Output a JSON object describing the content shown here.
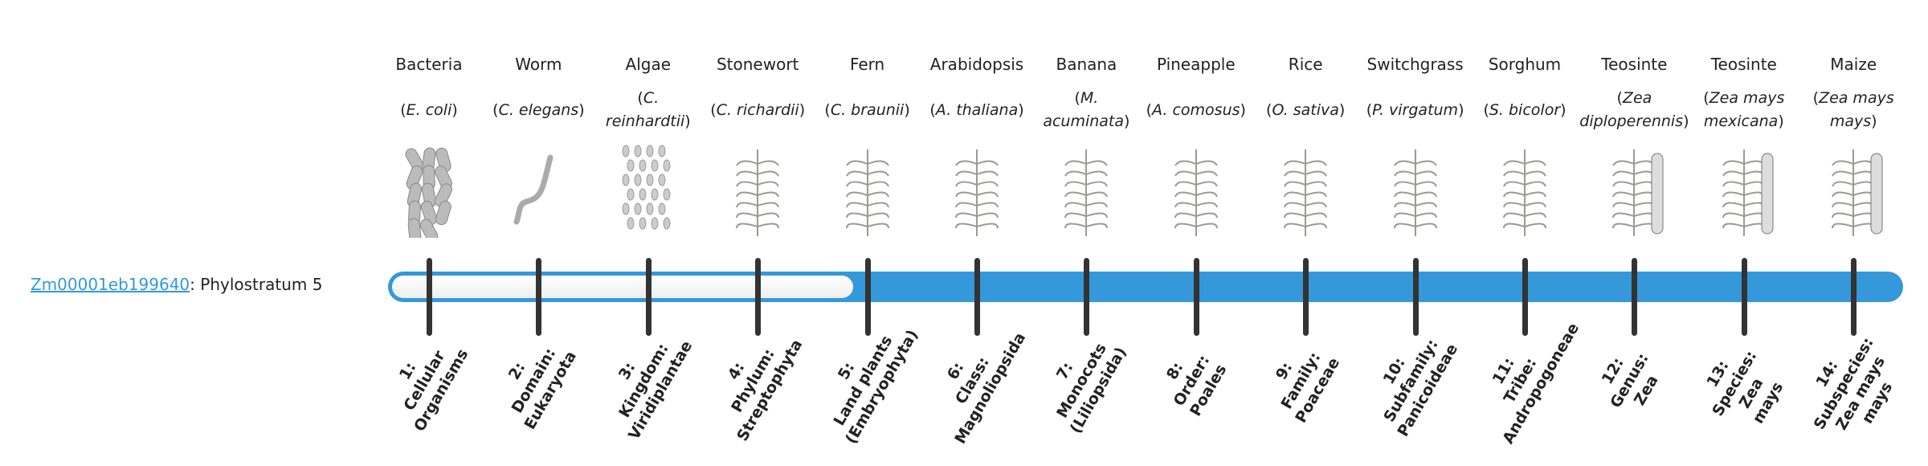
{
  "gene": {
    "id": "Zm00001eb199640",
    "suffix": ": Phylostratum 5",
    "phylostratum": 5
  },
  "colors": {
    "bar": "#3498db",
    "tick": "#333333",
    "link": "#3498db"
  },
  "organisms": [
    {
      "common": "Bacteria",
      "scientific": "E. coli",
      "icon": "bacteria-image"
    },
    {
      "common": "Worm",
      "scientific": "C. elegans",
      "icon": "worm-image"
    },
    {
      "common": "Algae",
      "scientific": "C. reinhardtii",
      "icon": "algae-image"
    },
    {
      "common": "Stonewort",
      "scientific": "C. richardii",
      "icon": "stonewort-image"
    },
    {
      "common": "Fern",
      "scientific": "C. braunii",
      "icon": "fern-image"
    },
    {
      "common": "Arabidopsis",
      "scientific": "A. thaliana",
      "icon": "arabidopsis-image"
    },
    {
      "common": "Banana",
      "scientific": "M. acuminata",
      "icon": "banana-image"
    },
    {
      "common": "Pineapple",
      "scientific": "A. comosus",
      "icon": "pineapple-image"
    },
    {
      "common": "Rice",
      "scientific": "O. sativa",
      "icon": "rice-image"
    },
    {
      "common": "Switchgrass",
      "scientific": "P. virgatum",
      "icon": "switchgrass-image"
    },
    {
      "common": "Sorghum",
      "scientific": "S. bicolor",
      "icon": "sorghum-image"
    },
    {
      "common": "Teosinte",
      "scientific": "Zea diploperennis",
      "icon": "teosinte-image"
    },
    {
      "common": "Teosinte",
      "scientific": "Zea mays mexicana",
      "icon": "teosinte-mexicana-image"
    },
    {
      "common": "Maize",
      "scientific": "Zea mays mays",
      "icon": "maize-image"
    }
  ],
  "strata": [
    {
      "lines": [
        "1:",
        "Cellular",
        "Organisms"
      ]
    },
    {
      "lines": [
        "2:",
        "Domain:",
        "Eukaryota"
      ]
    },
    {
      "lines": [
        "3:",
        "Kingdom:",
        "Viridiplantae"
      ]
    },
    {
      "lines": [
        "4:",
        "Phylum:",
        "Streptophyta"
      ]
    },
    {
      "lines": [
        "5:",
        "Land plants",
        "(Embryophyta)"
      ]
    },
    {
      "lines": [
        "6:",
        "Class:",
        "Magnoliopsida"
      ]
    },
    {
      "lines": [
        "7:",
        "Monocots",
        "(Liliopsida)"
      ]
    },
    {
      "lines": [
        "8:",
        "Order:",
        "Poales"
      ]
    },
    {
      "lines": [
        "9:",
        "Family:",
        "Poaceae"
      ]
    },
    {
      "lines": [
        "10:",
        "Subfamily:",
        "Panicoideae"
      ]
    },
    {
      "lines": [
        "11:",
        "Tribe:",
        "Andropogoneae"
      ]
    },
    {
      "lines": [
        "12:",
        "Genus:",
        "Zea"
      ]
    },
    {
      "lines": [
        "13:",
        "Species:",
        "Zea",
        "mays"
      ]
    },
    {
      "lines": [
        "14:",
        "Subspecies:",
        "Zea mays",
        "mays"
      ]
    }
  ]
}
